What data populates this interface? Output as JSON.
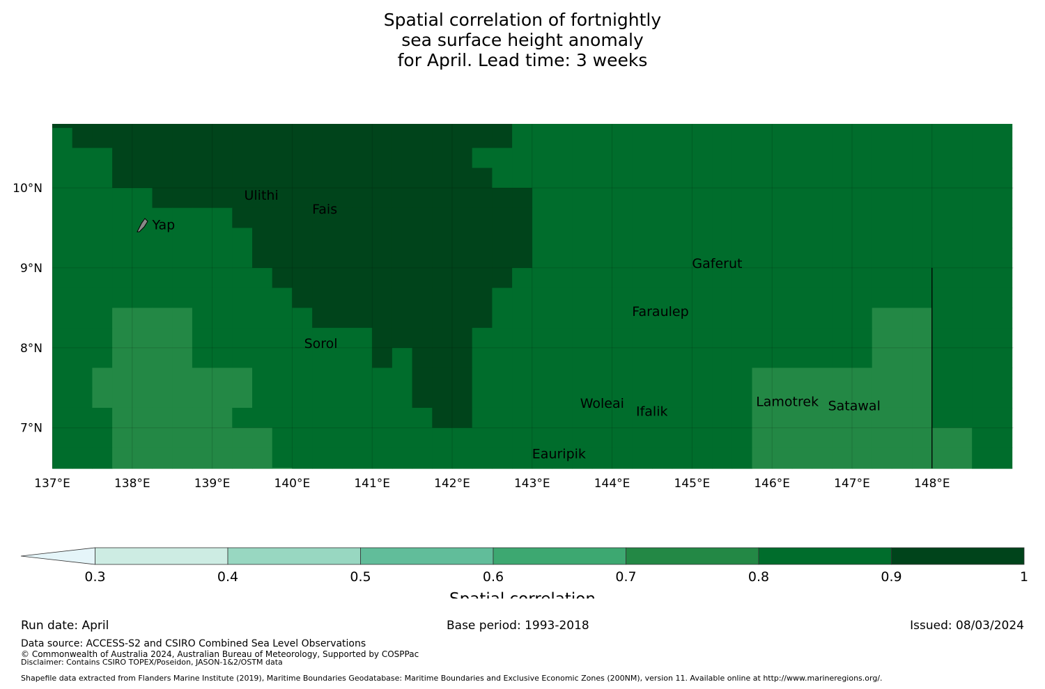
{
  "title_lines": [
    "Spatial correlation of fortnightly",
    "sea surface height anomaly",
    "for April. Lead time: 3 weeks"
  ],
  "map": {
    "lon_range": [
      137,
      149
    ],
    "lat_range": [
      6.5,
      10.8
    ],
    "x_ticks": [
      {
        "value": 137,
        "label": "137°E"
      },
      {
        "value": 138,
        "label": "138°E"
      },
      {
        "value": 139,
        "label": "139°E"
      },
      {
        "value": 140,
        "label": "140°E"
      },
      {
        "value": 141,
        "label": "141°E"
      },
      {
        "value": 142,
        "label": "142°E"
      },
      {
        "value": 143,
        "label": "143°E"
      },
      {
        "value": 144,
        "label": "144°E"
      },
      {
        "value": 145,
        "label": "145°E"
      },
      {
        "value": 146,
        "label": "146°E"
      },
      {
        "value": 147,
        "label": "147°E"
      },
      {
        "value": 148,
        "label": "148°E"
      }
    ],
    "y_ticks": [
      {
        "value": 10,
        "label": "10°N"
      },
      {
        "value": 9,
        "label": "9°N"
      },
      {
        "value": 8,
        "label": "8°N"
      },
      {
        "value": 7,
        "label": "7°N"
      }
    ],
    "boundary_line_lon": 148,
    "places": [
      {
        "name": "Ulithi",
        "lon": 139.4,
        "lat": 9.85
      },
      {
        "name": "Fais",
        "lon": 140.25,
        "lat": 9.68
      },
      {
        "name": "Yap",
        "lon": 138.25,
        "lat": 9.48
      },
      {
        "name": "Gaferut",
        "lon": 145.0,
        "lat": 9.0
      },
      {
        "name": "Faraulep",
        "lon": 144.25,
        "lat": 8.4
      },
      {
        "name": "Sorol",
        "lon": 140.15,
        "lat": 8.0
      },
      {
        "name": "Woleai",
        "lon": 143.6,
        "lat": 7.25
      },
      {
        "name": "Ifalik",
        "lon": 144.3,
        "lat": 7.15
      },
      {
        "name": "Lamotrek",
        "lon": 145.8,
        "lat": 7.27
      },
      {
        "name": "Satawal",
        "lon": 146.7,
        "lat": 7.22
      },
      {
        "name": "Eauripik",
        "lon": 143.0,
        "lat": 6.62
      }
    ],
    "grid_cols_start_lon": 137.0,
    "grid_rows_top_lat": 10.75,
    "cell_deg": 0.25,
    "colormap": {
      "1": "#cdece3",
      "2": "#98d7c1",
      "3": "#61bd9a",
      "4": "#3da871",
      "5": "#238845",
      "6": "#006d2c",
      "7": "#00441b"
    },
    "correlation_grid_bins": [
      "777777777777777777777776666666666666666666666666",
      "677777777777777777777776666666666666666666666666",
      "666777777777777777777666666666666666666666666666",
      "666777777777777777777766666666666666666666666666",
      "666667777777777777777777666666666666666666666666",
      "666666666777777777777777666666666666666666666666",
      "666666666677777777777777666666666666666666666666",
      "666666666677777777777777666666666666666666666666",
      "666666666667777777777776666666666666666666666666",
      "666666666666777777777766666666666666666666666666",
      "666555566666677777777766666666666666666665556666",
      "666555566666666677777666666666666666666665556666",
      "666555566666666676777666666666666666666665556666",
      "665555555566666666777666666666666665555555556666",
      "665555555566666666777666666666666665555555556666",
      "666555555666666666677666666666666665555555556666",
      "666555555556666666666666666666666665555555555566",
      "666555555556666666666666666666666665555555555566",
      "666555555555666666666666666666666665555555555566",
      "666555555555666666666666666666666665555555555566",
      "665555555555556666666666666666666665555555555566",
      "655555555555556666666666666666666665555555555566",
      "555555555555555566666666666666666666555555555566",
      "555555555555555566666666666666666666555555555566",
      "555555555555555566666666666666666666555555555566",
      "555555555555555566666666666666666666555555555566",
      "555555555555555566666666666666666666555555555566",
      "555555555555555555566666666666666666555555555566",
      "555555555555555555566666666666666666555555555566",
      "555555555555555555566666666666666666555555555566",
      "555555555555555555566666666666666666555555555566",
      "555555555555555555566666666666666666555555555566",
      "555555555555555555566666666666666666555555555566",
      "555555555555555555566666666666666666555555555566",
      "555555555555555555566666666666666666555555555566",
      "555555555555555555566666666666666666555555555566",
      "555555555555555555566666666666666666555555555566",
      "555555555555555555566666666666666666555555555566",
      "555555555555555555566666666666666666555555555566",
      "555555555555555555566666666666666666555555555566",
      "555555555555555555566666666666666666555555555566",
      "555555555555555555566666666666666666555555555566",
      "555555555555555555566666666666666666555555555566",
      "555555555555555555566666666666666666555555555566",
      "555555555555555555566666666666666666555555555566"
    ]
  },
  "colorbar": {
    "label": "Spatial correlation",
    "tick_labels": [
      "0.3",
      "0.4",
      "0.5",
      "0.6",
      "0.7",
      "0.8",
      "0.9",
      "1"
    ],
    "extend_color": "#e5f5f9",
    "colors": [
      "#cdece3",
      "#98d7c1",
      "#61bd9a",
      "#3da871",
      "#238845",
      "#006d2c",
      "#00441b"
    ]
  },
  "footer": {
    "run_date": "Run date: April",
    "base_period": "Base period: 1993-2018",
    "issued": "Issued: 08/03/2024",
    "data_source": "Data source: ACCESS-S2 and CSIRO Combined Sea Level Observations",
    "copyright": "© Commonwealth of Australia 2024, Australian Bureau of Meteorology, Supported by COSPPac",
    "disclaimer": "Disclaimer: Contains CSIRO TOPEX/Poseidon, JASON-1&2/OSTM data",
    "shapefile": "Shapefile data extracted from Flanders Marine Institute (2019), Maritime Boundaries Geodatabase: Maritime Boundaries and Exclusive Economic Zones (200NM), version 11. Available online at http://www.marineregions.org/."
  }
}
